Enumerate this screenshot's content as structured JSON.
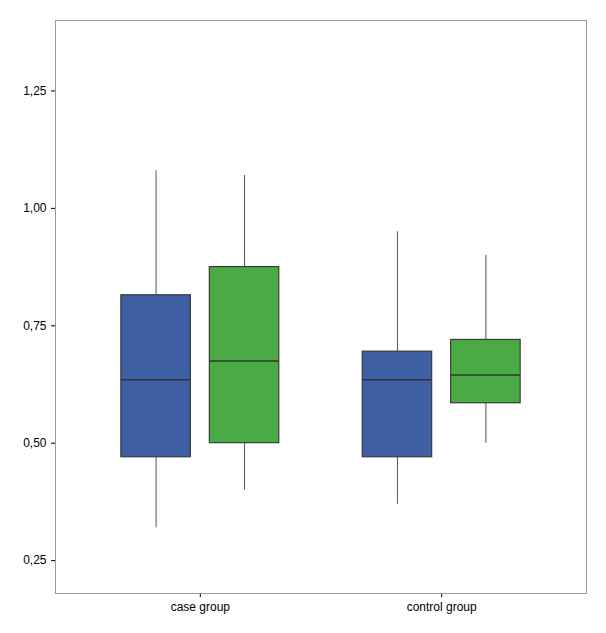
{
  "chart_data": {
    "type": "box",
    "categories": [
      "case group",
      "control group"
    ],
    "series": [
      {
        "color": "#3f5fa5",
        "q1": [
          0.47,
          0.47
        ],
        "median": [
          0.635,
          0.635
        ],
        "q3": [
          0.815,
          0.695
        ],
        "whisker_low": [
          0.32,
          0.37
        ],
        "whisker_high": [
          1.08,
          0.95
        ]
      },
      {
        "color": "#4aab45",
        "q1": [
          0.5,
          0.585
        ],
        "median": [
          0.675,
          0.645
        ],
        "q3": [
          0.875,
          0.72
        ],
        "whisker_low": [
          0.4,
          0.5
        ],
        "whisker_high": [
          1.07,
          0.9
        ]
      }
    ],
    "ylim": [
      0.18,
      1.4
    ],
    "yticks": [
      {
        "value": 0.25,
        "label": "0,25"
      },
      {
        "value": 0.5,
        "label": "0,50"
      },
      {
        "value": 0.75,
        "label": "0,75"
      },
      {
        "value": 1.0,
        "label": "1,00"
      },
      {
        "value": 1.25,
        "label": "1,25"
      }
    ],
    "grid": false
  }
}
